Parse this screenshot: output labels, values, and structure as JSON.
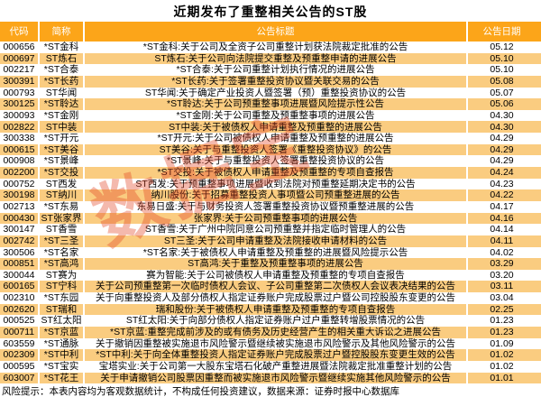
{
  "title": "近期发布了重整相关公告的ST股",
  "watermark": "数据宝",
  "footer": "风险提示：本表内容均为客观数据统计，不构成任何投资建议，数据来源：证券时报中心数据库",
  "colors": {
    "header_bg": "#fca519",
    "stripe_bg": "#facc80",
    "header_text": "#ffffff",
    "watermark_red": "#e24628"
  },
  "chart_data": {
    "type": "table",
    "title": "近期发布了重整相关公告的ST股",
    "columns": [
      "代码",
      "简称",
      "公告标题",
      "公告日期"
    ],
    "rows": [
      {
        "code": "000656",
        "name": "*ST金科",
        "title": "*ST金科:关于公司及全资子公司重整计划获法院裁定批准的公告",
        "date": "05.12"
      },
      {
        "code": "000697",
        "name": "ST炼石",
        "title": "ST炼石:关于公司向法院提交重整及预重整申请的进展公告",
        "date": "05.10"
      },
      {
        "code": "002217",
        "name": "*ST合泰",
        "title": "*ST合泰:关于公司重整计划执行情况的进展公告",
        "date": "05.10"
      },
      {
        "code": "300391",
        "name": "*ST长药",
        "title": "*ST长药:关于签署重整投资协议暨关联交易的公告",
        "date": "05.08"
      },
      {
        "code": "000793",
        "name": "ST华闻",
        "title": "ST华闻:关于确定产业投资人暨签署（预）重整投资协议的公告",
        "date": "05.07"
      },
      {
        "code": "300125",
        "name": "*ST聆达",
        "title": "*ST聆达:关于公司预重整事项进展暨风险提示性公告",
        "date": "05.06"
      },
      {
        "code": "300093",
        "name": "*ST金刚",
        "title": "*ST金刚:关于公司重整及预重整事项的进展公告",
        "date": "04.30"
      },
      {
        "code": "002822",
        "name": "ST中装",
        "title": "ST中装:关于被债权人申请重整及预重整的进展公告",
        "date": "04.30"
      },
      {
        "code": "300338",
        "name": "*ST开元",
        "title": "*ST开元:关于公司被债权人申请重整及预重整的进展公告",
        "date": "04.29"
      },
      {
        "code": "000615",
        "name": "*ST美谷",
        "title": "ST美谷:关于与重整投资人签署《重整投资协议》的公告",
        "date": "04.29"
      },
      {
        "code": "000908",
        "name": "*ST景峰",
        "title": "*ST景峰:关于与重整投资人签署重整投资协议的公告",
        "date": "04.29"
      },
      {
        "code": "002200",
        "name": "*ST交投",
        "title": "*ST交投:关于被债权人申请重整及预重整的专项自查报告",
        "date": "04.24"
      },
      {
        "code": "000752",
        "name": "ST西发",
        "title": "ST西发:关于预重整事项进展暨收到法院对预重整延期决定书的公告",
        "date": "04.23"
      },
      {
        "code": "300198",
        "name": "ST纳川",
        "title": "纳川股份:关于招募重整投资人事项暨公司预重整进展的公告",
        "date": "04.22"
      },
      {
        "code": "002713",
        "name": "*ST东易",
        "title": "东易日盛:关于与财务投资人签署重整投资协议暨预重整进展的公告",
        "date": "04.17"
      },
      {
        "code": "000430",
        "name": "ST张家界",
        "title": "张家界:关于公司预重整事项的进展公告",
        "date": "04.16"
      },
      {
        "code": "300147",
        "name": "ST香雪",
        "title": "ST香雪:关于广州中院同意公司预重整并指定临时管理人的公告",
        "date": "04.14"
      },
      {
        "code": "002742",
        "name": "*ST三圣",
        "title": "ST三圣:关于公司申请重整及法院接收申请材料的公告",
        "date": "04.11"
      },
      {
        "code": "300506",
        "name": "*ST名家",
        "title": "*ST名家:关于被债权人申请重整及预重整的进展暨风险提示公告",
        "date": "04.02"
      },
      {
        "code": "000851",
        "name": "*ST高鸿",
        "title": "ST高鸿:关于重整及预重整事项的进展公告",
        "date": "03.29"
      },
      {
        "code": "300044",
        "name": "ST赛为",
        "title": "赛为智能:关于公司被债权人申请重整及预重整的专项自查报告",
        "date": "03.20"
      },
      {
        "code": "600165",
        "name": "ST宁科",
        "title": "关于公司预重整第一次临时债权人会议、子公司重整第二次债权人会议表决结果的公告",
        "date": "03.11"
      },
      {
        "code": "002310",
        "name": "*ST东园",
        "title": "关于向重整投资人及部分债权人指定证券账户完成股票过户暨公司控股股东变更的公告",
        "date": "03.04"
      },
      {
        "code": "002620",
        "name": "ST瑞和",
        "title": "瑞和股份:关于被债权人申请重整及预重整的专项自查报告",
        "date": "02.25"
      },
      {
        "code": "000525",
        "name": "ST红太阳",
        "title": "ST红太阳:关于向部分债权人指定证券账户过户重整转增股票情况的公告",
        "date": "01.23"
      },
      {
        "code": "000711",
        "name": "*ST京蓝",
        "title": "*ST京蓝:重整完成前涉及的或有债务及历史经营产生的相关重大诉讼之进展公告",
        "date": "01.23"
      },
      {
        "code": "603559",
        "name": "*ST通脉",
        "title": "关于撤销因重整被实施退市风险警示暨继续被实施退市风险警示及其他风险警示的公告",
        "date": "01.09"
      },
      {
        "code": "002309",
        "name": "*ST中利",
        "title": "*ST中利:关于向全体重整投资人指定证券账户完成股票过户暨控股股东变更生效的公告",
        "date": "01.02"
      },
      {
        "code": "000595",
        "name": "*ST宝实",
        "title": "宝塔实业:关于公司第一大股东宝塔石化破产重整进展暨法院裁定批准重整计划的公告",
        "date": "01.02"
      },
      {
        "code": "603007",
        "name": "*ST花王",
        "title": "关于申请撤销公司股票因重整而被实施退市风险警示暨继续实施其他风险警示的公告",
        "date": "01.01"
      }
    ]
  }
}
